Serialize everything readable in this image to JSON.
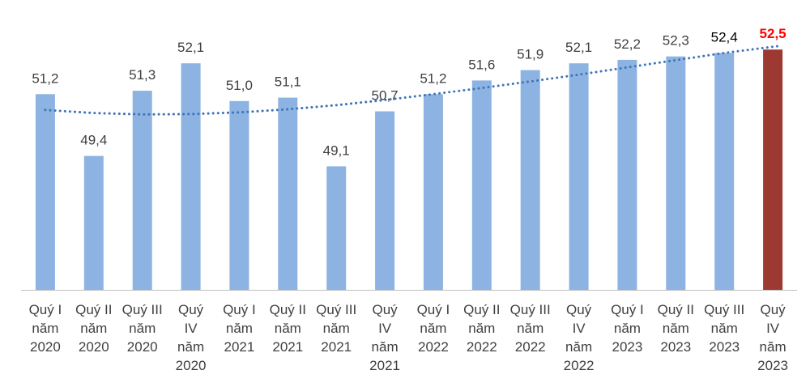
{
  "chart_data": {
    "type": "bar",
    "title": "",
    "xlabel": "",
    "ylabel": "",
    "ylim": [
      45.5,
      53
    ],
    "grid": false,
    "legend": "none",
    "categories": [
      [
        "Quý I",
        "năm",
        "2020"
      ],
      [
        "Quý II",
        "năm",
        "2020"
      ],
      [
        "Quý III",
        "năm",
        "2020"
      ],
      [
        "Quý",
        "IV",
        "năm",
        "2020"
      ],
      [
        "Quý I",
        "năm",
        "2021"
      ],
      [
        "Quý II",
        "năm",
        "2021"
      ],
      [
        "Quý III",
        "năm",
        "2021"
      ],
      [
        "Quý",
        "IV",
        "năm",
        "2021"
      ],
      [
        "Quý I",
        "năm",
        "2022"
      ],
      [
        "Quý II",
        "năm",
        "2022"
      ],
      [
        "Quý III",
        "năm",
        "2022"
      ],
      [
        "Quý",
        "IV",
        "năm",
        "2022"
      ],
      [
        "Quý I",
        "năm",
        "2023"
      ],
      [
        "Quý II",
        "năm",
        "2023"
      ],
      [
        "Quý III",
        "năm",
        "2023"
      ],
      [
        "Quý",
        "IV",
        "năm",
        "2023"
      ]
    ],
    "values": [
      51.2,
      49.4,
      51.3,
      52.1,
      51.0,
      51.1,
      49.1,
      50.7,
      51.2,
      51.6,
      51.9,
      52.1,
      52.2,
      52.3,
      52.4,
      52.5
    ],
    "data_labels": [
      "51,2",
      "49,4",
      "51,3",
      "52,1",
      "51,0",
      "51,1",
      "49,1",
      "50,7",
      "51,2",
      "51,6",
      "51,9",
      "52,1",
      "52,2",
      "52,3",
      "52,4",
      "52,5"
    ],
    "highlight_index": 15,
    "trendline": {
      "type": "polynomial",
      "style": "dotted",
      "values": [
        50.74,
        50.65,
        50.61,
        50.62,
        50.67,
        50.76,
        50.88,
        51.03,
        51.2,
        51.38,
        51.57,
        51.77,
        51.98,
        52.19,
        52.4,
        52.61
      ]
    },
    "colors": {
      "bar": "#8db3e2",
      "highlight_bar": "#9c3a32",
      "trendline": "#3f74b5",
      "axis": "#bfbfbf",
      "label": "#404040",
      "label_strong": "#000000",
      "highlight_label": "#ff0000"
    }
  }
}
